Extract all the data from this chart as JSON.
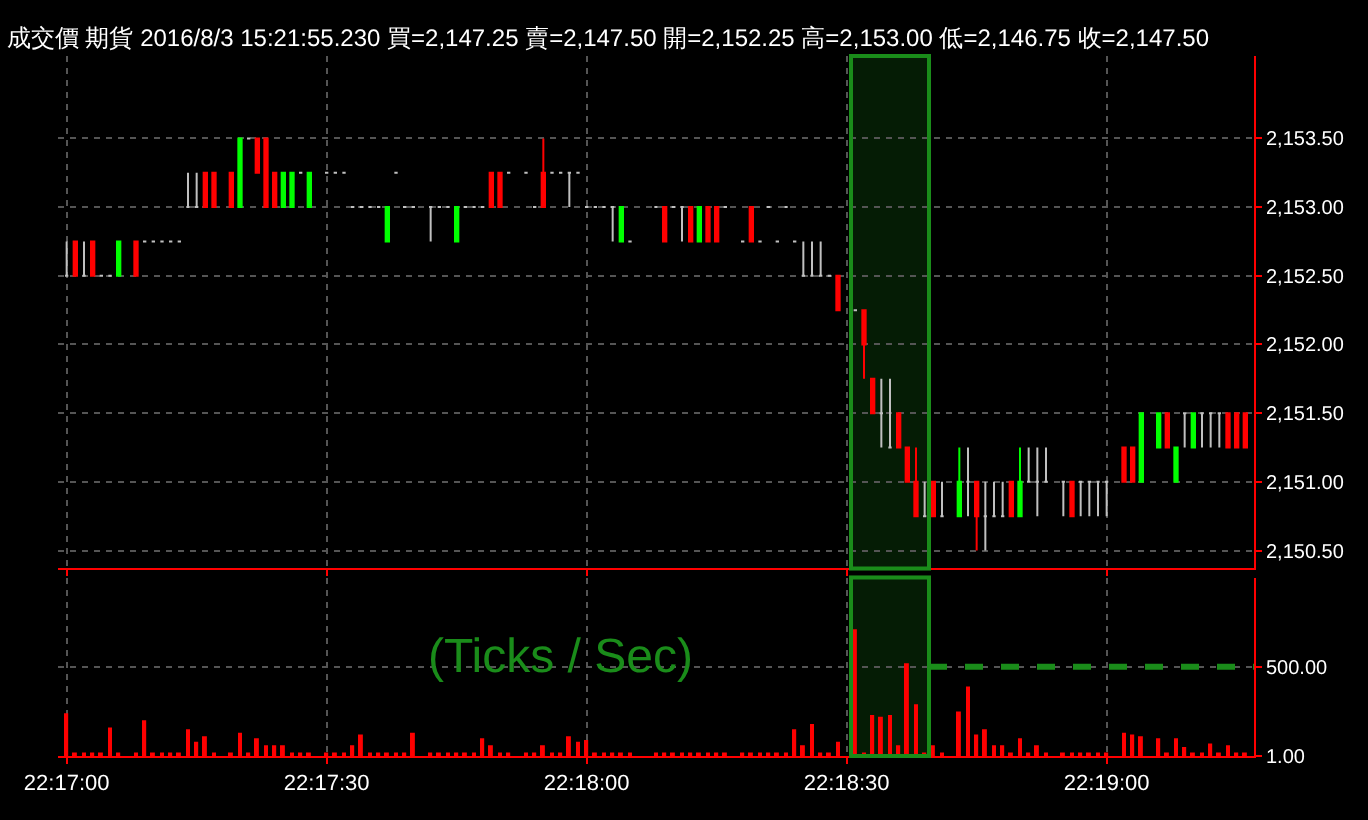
{
  "chart_data": [
    {
      "type": "candlestick",
      "title": "成交價 期貨 2016/8/3 15:21:55.230 買=2,147.25 賣=2,147.50 開=2,152.25 高=2,153.00 低=2,146.75 收=2,147.50",
      "x": [
        "2016-08-03T22:17:00",
        "2016-08-03T22:17:01",
        "2016-08-03T22:17:02",
        "2016-08-03T22:17:03",
        "2016-08-03T22:17:04",
        "2016-08-03T22:17:05",
        "2016-08-03T22:17:06",
        "2016-08-03T22:17:08",
        "2016-08-03T22:17:09",
        "2016-08-03T22:17:10",
        "2016-08-03T22:17:11",
        "2016-08-03T22:17:12",
        "2016-08-03T22:17:13",
        "2016-08-03T22:17:14",
        "2016-08-03T22:17:15",
        "2016-08-03T22:17:16",
        "2016-08-03T22:17:17",
        "2016-08-03T22:17:19",
        "2016-08-03T22:17:20",
        "2016-08-03T22:17:21",
        "2016-08-03T22:17:22",
        "2016-08-03T22:17:23",
        "2016-08-03T22:17:24",
        "2016-08-03T22:17:25",
        "2016-08-03T22:17:26",
        "2016-08-03T22:17:27",
        "2016-08-03T22:17:28",
        "2016-08-03T22:17:30",
        "2016-08-03T22:17:31",
        "2016-08-03T22:17:32",
        "2016-08-03T22:17:33",
        "2016-08-03T22:17:34",
        "2016-08-03T22:17:35",
        "2016-08-03T22:17:36",
        "2016-08-03T22:17:37",
        "2016-08-03T22:17:38",
        "2016-08-03T22:17:39",
        "2016-08-03T22:17:40",
        "2016-08-03T22:17:42",
        "2016-08-03T22:17:43",
        "2016-08-03T22:17:44",
        "2016-08-03T22:17:45",
        "2016-08-03T22:17:46",
        "2016-08-03T22:17:47",
        "2016-08-03T22:17:48",
        "2016-08-03T22:17:49",
        "2016-08-03T22:17:50",
        "2016-08-03T22:17:51",
        "2016-08-03T22:17:53",
        "2016-08-03T22:17:54",
        "2016-08-03T22:17:55",
        "2016-08-03T22:17:56",
        "2016-08-03T22:17:57",
        "2016-08-03T22:17:58",
        "2016-08-03T22:17:59",
        "2016-08-03T22:18:00",
        "2016-08-03T22:18:01",
        "2016-08-03T22:18:02",
        "2016-08-03T22:18:03",
        "2016-08-03T22:18:04",
        "2016-08-03T22:18:05",
        "2016-08-03T22:18:08",
        "2016-08-03T22:18:09",
        "2016-08-03T22:18:10",
        "2016-08-03T22:18:11",
        "2016-08-03T22:18:12",
        "2016-08-03T22:18:13",
        "2016-08-03T22:18:14",
        "2016-08-03T22:18:15",
        "2016-08-03T22:18:16",
        "2016-08-03T22:18:18",
        "2016-08-03T22:18:19",
        "2016-08-03T22:18:20",
        "2016-08-03T22:18:21",
        "2016-08-03T22:18:22",
        "2016-08-03T22:18:23",
        "2016-08-03T22:18:24",
        "2016-08-03T22:18:25",
        "2016-08-03T22:18:26",
        "2016-08-03T22:18:27",
        "2016-08-03T22:18:28",
        "2016-08-03T22:18:29",
        "2016-08-03T22:18:31",
        "2016-08-03T22:18:32",
        "2016-08-03T22:18:33",
        "2016-08-03T22:18:34",
        "2016-08-03T22:18:35",
        "2016-08-03T22:18:36",
        "2016-08-03T22:18:37",
        "2016-08-03T22:18:38",
        "2016-08-03T22:18:39",
        "2016-08-03T22:18:40",
        "2016-08-03T22:18:41",
        "2016-08-03T22:18:43",
        "2016-08-03T22:18:44",
        "2016-08-03T22:18:45",
        "2016-08-03T22:18:46",
        "2016-08-03T22:18:47",
        "2016-08-03T22:18:48",
        "2016-08-03T22:18:49",
        "2016-08-03T22:18:50",
        "2016-08-03T22:18:51",
        "2016-08-03T22:18:52",
        "2016-08-03T22:18:53",
        "2016-08-03T22:18:55",
        "2016-08-03T22:18:56",
        "2016-08-03T22:18:57",
        "2016-08-03T22:18:58",
        "2016-08-03T22:18:59",
        "2016-08-03T22:19:00",
        "2016-08-03T22:19:02",
        "2016-08-03T22:19:03",
        "2016-08-03T22:19:04",
        "2016-08-03T22:19:06",
        "2016-08-03T22:19:07",
        "2016-08-03T22:19:08",
        "2016-08-03T22:19:09",
        "2016-08-03T22:19:10",
        "2016-08-03T22:19:11",
        "2016-08-03T22:19:12",
        "2016-08-03T22:19:13",
        "2016-08-03T22:19:14",
        "2016-08-03T22:19:15",
        "2016-08-03T22:19:16"
      ],
      "ohlc": [
        [
          2152.5,
          2152.75,
          2152.5,
          2152.5
        ],
        [
          2152.75,
          2152.75,
          2152.5,
          2152.5
        ],
        [
          2152.5,
          2152.75,
          2152.5,
          2152.5
        ],
        [
          2152.75,
          2152.75,
          2152.5,
          2152.5
        ],
        [
          2152.5,
          2152.5,
          2152.5,
          2152.5
        ],
        [
          2152.5,
          2152.5,
          2152.5,
          2152.5
        ],
        [
          2152.5,
          2152.75,
          2152.5,
          2152.75
        ],
        [
          2152.75,
          2152.75,
          2152.5,
          2152.5
        ],
        [
          2152.75,
          2152.75,
          2152.75,
          2152.75
        ],
        [
          2152.75,
          2152.75,
          2152.75,
          2152.75
        ],
        [
          2152.75,
          2152.75,
          2152.75,
          2152.75
        ],
        [
          2152.75,
          2152.75,
          2152.75,
          2152.75
        ],
        [
          2152.75,
          2152.75,
          2152.75,
          2152.75
        ],
        [
          2153,
          2153.25,
          2153,
          2153
        ],
        [
          2153,
          2153.25,
          2153,
          2153
        ],
        [
          2153.25,
          2153.25,
          2153,
          2153
        ],
        [
          2153.25,
          2153.25,
          2153,
          2153
        ],
        [
          2153.25,
          2153.25,
          2153,
          2153
        ],
        [
          2153,
          2153.5,
          2153,
          2153.5
        ],
        [
          2153.5,
          2153.5,
          2153.5,
          2153.5
        ],
        [
          2153.5,
          2153.5,
          2153.25,
          2153.25
        ],
        [
          2153.5,
          2153.5,
          2153,
          2153
        ],
        [
          2153.25,
          2153.25,
          2153,
          2153
        ],
        [
          2153,
          2153.25,
          2153,
          2153.25
        ],
        [
          2153,
          2153.25,
          2153,
          2153.25
        ],
        [
          2153.25,
          2153.25,
          2153.25,
          2153.25
        ],
        [
          2153,
          2153.25,
          2153,
          2153.25
        ],
        [
          2153.25,
          2153.25,
          2153.25,
          2153.25
        ],
        [
          2153.25,
          2153.25,
          2153.25,
          2153.25
        ],
        [
          2153.25,
          2153.25,
          2153.25,
          2153.25
        ],
        [
          2153,
          2153,
          2153,
          2153
        ],
        [
          2153,
          2153,
          2153,
          2153
        ],
        [
          2153,
          2153,
          2153,
          2153
        ],
        [
          2153,
          2153,
          2153,
          2153
        ],
        [
          2152.75,
          2153,
          2152.75,
          2153
        ],
        [
          2153.25,
          2153.25,
          2153.25,
          2153.25
        ],
        [
          2153,
          2153,
          2153,
          2153
        ],
        [
          2153,
          2153,
          2153,
          2153
        ],
        [
          2153,
          2153,
          2152.75,
          2153
        ],
        [
          2153,
          2153,
          2153,
          2153
        ],
        [
          2153,
          2153,
          2153,
          2153
        ],
        [
          2152.75,
          2153,
          2152.75,
          2153
        ],
        [
          2153,
          2153,
          2153,
          2153
        ],
        [
          2153,
          2153,
          2153,
          2153
        ],
        [
          2153,
          2153,
          2153,
          2153
        ],
        [
          2153.25,
          2153.25,
          2153,
          2153
        ],
        [
          2153.25,
          2153.25,
          2153,
          2153
        ],
        [
          2153.25,
          2153.25,
          2153.25,
          2153.25
        ],
        [
          2153.25,
          2153.25,
          2153.25,
          2153.25
        ],
        [
          2153,
          2153,
          2153,
          2153
        ],
        [
          2153.25,
          2153.5,
          2153,
          2153
        ],
        [
          2153.25,
          2153.25,
          2153.25,
          2153.25
        ],
        [
          2153.25,
          2153.25,
          2153.25,
          2153.25
        ],
        [
          2153.25,
          2153.25,
          2153,
          2153.25
        ],
        [
          2153.25,
          2153.25,
          2153.25,
          2153.25
        ],
        [
          2153,
          2153,
          2153,
          2153
        ],
        [
          2153,
          2153,
          2153,
          2153
        ],
        [
          2153,
          2153,
          2153,
          2153
        ],
        [
          2153,
          2153,
          2152.75,
          2153
        ],
        [
          2152.75,
          2153,
          2152.75,
          2153
        ],
        [
          2152.75,
          2152.75,
          2152.75,
          2152.75
        ],
        [
          2153,
          2153,
          2153,
          2153
        ],
        [
          2153,
          2153,
          2152.75,
          2152.75
        ],
        [
          2153,
          2153,
          2153,
          2153
        ],
        [
          2153,
          2153,
          2152.75,
          2153
        ],
        [
          2153,
          2153,
          2152.75,
          2152.75
        ],
        [
          2152.75,
          2153,
          2152.75,
          2153
        ],
        [
          2153,
          2153,
          2152.75,
          2152.75
        ],
        [
          2153,
          2153,
          2152.75,
          2152.75
        ],
        [
          2153,
          2153,
          2153,
          2153
        ],
        [
          2152.75,
          2152.75,
          2152.75,
          2152.75
        ],
        [
          2153,
          2153,
          2152.75,
          2152.75
        ],
        [
          2152.75,
          2152.75,
          2152.75,
          2152.75
        ],
        [
          2153,
          2153,
          2153,
          2153
        ],
        [
          2152.75,
          2152.75,
          2152.75,
          2152.75
        ],
        [
          2153,
          2153,
          2153,
          2153
        ],
        [
          2152.75,
          2152.75,
          2152.75,
          2152.75
        ],
        [
          2152.5,
          2152.75,
          2152.5,
          2152.5
        ],
        [
          2152.5,
          2152.75,
          2152.5,
          2152.5
        ],
        [
          2152.5,
          2152.75,
          2152.5,
          2152.5
        ],
        [
          2152.5,
          2152.5,
          2152.5,
          2152.5
        ],
        [
          2152.5,
          2152.5,
          2152.25,
          2152.25
        ],
        [
          2152.25,
          2152.25,
          2152.25,
          2152.25
        ],
        [
          2152.25,
          2152.25,
          2151.75,
          2152
        ],
        [
          2151.75,
          2151.75,
          2151.5,
          2151.5
        ],
        [
          2151.5,
          2151.75,
          2151.25,
          2151.5
        ],
        [
          2151.25,
          2151.75,
          2151.25,
          2151.25
        ],
        [
          2151.5,
          2151.5,
          2151.25,
          2151.25
        ],
        [
          2151.25,
          2151.25,
          2151,
          2151
        ],
        [
          2151,
          2151.25,
          2150.75,
          2150.75
        ],
        [
          2150.75,
          2151,
          2150.75,
          2150.75
        ],
        [
          2151,
          2151,
          2150.75,
          2150.75
        ],
        [
          2150.75,
          2151,
          2150.75,
          2150.75
        ],
        [
          2150.75,
          2151.25,
          2150.75,
          2151
        ],
        [
          2151,
          2151.25,
          2150.75,
          2151
        ],
        [
          2151,
          2151,
          2150.5,
          2150.75
        ],
        [
          2150.75,
          2151,
          2150.5,
          2150.75
        ],
        [
          2150.75,
          2151,
          2150.75,
          2150.75
        ],
        [
          2150.75,
          2151,
          2150.75,
          2150.75
        ],
        [
          2151,
          2151,
          2150.75,
          2150.75
        ],
        [
          2150.75,
          2151.25,
          2150.75,
          2151
        ],
        [
          2151,
          2151.25,
          2151,
          2151
        ],
        [
          2151,
          2151.25,
          2150.75,
          2151
        ],
        [
          2151,
          2151.25,
          2151,
          2151
        ],
        [
          2151,
          2151,
          2150.75,
          2151
        ],
        [
          2151,
          2151,
          2150.75,
          2150.75
        ],
        [
          2151,
          2151,
          2150.75,
          2151
        ],
        [
          2151,
          2151,
          2150.75,
          2151
        ],
        [
          2151,
          2151,
          2150.75,
          2151
        ],
        [
          2151,
          2151,
          2150.75,
          2151
        ],
        [
          2151.25,
          2151.25,
          2151,
          2151
        ],
        [
          2151.25,
          2151.25,
          2151,
          2151
        ],
        [
          2151,
          2151.5,
          2151,
          2151.5
        ],
        [
          2151.25,
          2151.5,
          2151.25,
          2151.5
        ],
        [
          2151.5,
          2151.5,
          2151.25,
          2151.25
        ],
        [
          2151,
          2151.25,
          2151,
          2151.25
        ],
        [
          2151.5,
          2151.5,
          2151.25,
          2151.5
        ],
        [
          2151.25,
          2151.5,
          2151.25,
          2151.5
        ],
        [
          2151.5,
          2151.5,
          2151.25,
          2151.5
        ],
        [
          2151.5,
          2151.5,
          2151.25,
          2151.5
        ],
        [
          2151.5,
          2151.5,
          2151.25,
          2151.5
        ],
        [
          2151.5,
          2151.5,
          2151.25,
          2151.25
        ],
        [
          2151.5,
          2151.5,
          2151.25,
          2151.25
        ],
        [
          2151.5,
          2151.5,
          2151.25,
          2151.25
        ]
      ],
      "colors": [
        "#c0c0c0",
        "#ff0000",
        "#c0c0c0",
        "#ff0000",
        "#c0c0c0",
        "#c0c0c0",
        "#00ff00",
        "#ff0000",
        "#c0c0c0",
        "#c0c0c0",
        "#c0c0c0",
        "#c0c0c0",
        "#c0c0c0",
        "#c0c0c0",
        "#c0c0c0",
        "#ff0000",
        "#ff0000",
        "#ff0000",
        "#00ff00",
        "#c0c0c0",
        "#ff0000",
        "#ff0000",
        "#ff0000",
        "#00ff00",
        "#00ff00",
        "#c0c0c0",
        "#00ff00",
        "#c0c0c0",
        "#c0c0c0",
        "#c0c0c0",
        "#c0c0c0",
        "#c0c0c0",
        "#c0c0c0",
        "#c0c0c0",
        "#00ff00",
        "#c0c0c0",
        "#c0c0c0",
        "#c0c0c0",
        "#c0c0c0",
        "#c0c0c0",
        "#c0c0c0",
        "#00ff00",
        "#c0c0c0",
        "#c0c0c0",
        "#c0c0c0",
        "#ff0000",
        "#ff0000",
        "#c0c0c0",
        "#c0c0c0",
        "#c0c0c0",
        "#ff0000",
        "#c0c0c0",
        "#c0c0c0",
        "#c0c0c0",
        "#c0c0c0",
        "#c0c0c0",
        "#c0c0c0",
        "#c0c0c0",
        "#c0c0c0",
        "#00ff00",
        "#c0c0c0",
        "#c0c0c0",
        "#ff0000",
        "#c0c0c0",
        "#c0c0c0",
        "#ff0000",
        "#00ff00",
        "#ff0000",
        "#ff0000",
        "#c0c0c0",
        "#c0c0c0",
        "#ff0000",
        "#c0c0c0",
        "#c0c0c0",
        "#c0c0c0",
        "#c0c0c0",
        "#c0c0c0",
        "#c0c0c0",
        "#c0c0c0",
        "#c0c0c0",
        "#c0c0c0",
        "#ff0000",
        "#c0c0c0",
        "#ff0000",
        "#ff0000",
        "#c0c0c0",
        "#c0c0c0",
        "#ff0000",
        "#ff0000",
        "#ff0000",
        "#c0c0c0",
        "#ff0000",
        "#c0c0c0",
        "#00ff00",
        "#c0c0c0",
        "#ff0000",
        "#c0c0c0",
        "#c0c0c0",
        "#c0c0c0",
        "#ff0000",
        "#00ff00",
        "#c0c0c0",
        "#c0c0c0",
        "#c0c0c0",
        "#c0c0c0",
        "#ff0000",
        "#c0c0c0",
        "#c0c0c0",
        "#c0c0c0",
        "#c0c0c0",
        "#ff0000",
        "#ff0000",
        "#00ff00",
        "#00ff00",
        "#ff0000",
        "#00ff00",
        "#c0c0c0",
        "#00ff00",
        "#c0c0c0",
        "#c0c0c0",
        "#c0c0c0",
        "#ff0000",
        "#ff0000",
        "#ff0000"
      ],
      "ylim": [
        2150.37,
        2154.1
      ],
      "yticks": [
        {
          "value": 2150.5,
          "label": "2,150.50"
        },
        {
          "value": 2151,
          "label": "2,151.00"
        },
        {
          "value": 2151.5,
          "label": "2,151.50"
        },
        {
          "value": 2152,
          "label": "2,152.00"
        },
        {
          "value": 2152.5,
          "label": "2,152.50"
        },
        {
          "value": 2153,
          "label": "2,153.00"
        },
        {
          "value": 2153.5,
          "label": "2,153.50"
        }
      ],
      "xlim": [
        "2016-08-03T22:16:59",
        "2016-08-03T22:19:17"
      ],
      "xticks": [
        {
          "value": "2016-08-03T22:17:00",
          "label": null
        },
        {
          "value": "2016-08-03T22:17:30",
          "label": null
        },
        {
          "value": "2016-08-03T22:18:00",
          "label": null
        },
        {
          "value": "2016-08-03T22:18:30",
          "label": null
        },
        {
          "value": "2016-08-03T22:19:00",
          "label": null
        }
      ],
      "tick_labels": "y",
      "grid": true,
      "bands": [
        {
          "axis": "x",
          "from": "2016-08-03T22:18:30.5",
          "to": "2016-08-03T22:18:39.5",
          "color": "#1a8c1a"
        }
      ]
    },
    {
      "type": "bar",
      "x": [
        "2016-08-03T22:17:00",
        "2016-08-03T22:17:01",
        "2016-08-03T22:17:02",
        "2016-08-03T22:17:03",
        "2016-08-03T22:17:04",
        "2016-08-03T22:17:05",
        "2016-08-03T22:17:06",
        "2016-08-03T22:17:08",
        "2016-08-03T22:17:09",
        "2016-08-03T22:17:10",
        "2016-08-03T22:17:11",
        "2016-08-03T22:17:12",
        "2016-08-03T22:17:13",
        "2016-08-03T22:17:14",
        "2016-08-03T22:17:15",
        "2016-08-03T22:17:16",
        "2016-08-03T22:17:17",
        "2016-08-03T22:17:19",
        "2016-08-03T22:17:20",
        "2016-08-03T22:17:21",
        "2016-08-03T22:17:22",
        "2016-08-03T22:17:23",
        "2016-08-03T22:17:24",
        "2016-08-03T22:17:25",
        "2016-08-03T22:17:26",
        "2016-08-03T22:17:27",
        "2016-08-03T22:17:28",
        "2016-08-03T22:17:30",
        "2016-08-03T22:17:31",
        "2016-08-03T22:17:32",
        "2016-08-03T22:17:33",
        "2016-08-03T22:17:34",
        "2016-08-03T22:17:35",
        "2016-08-03T22:17:36",
        "2016-08-03T22:17:37",
        "2016-08-03T22:17:38",
        "2016-08-03T22:17:39",
        "2016-08-03T22:17:40",
        "2016-08-03T22:17:42",
        "2016-08-03T22:17:43",
        "2016-08-03T22:17:44",
        "2016-08-03T22:17:45",
        "2016-08-03T22:17:46",
        "2016-08-03T22:17:47",
        "2016-08-03T22:17:48",
        "2016-08-03T22:17:49",
        "2016-08-03T22:17:50",
        "2016-08-03T22:17:51",
        "2016-08-03T22:17:53",
        "2016-08-03T22:17:54",
        "2016-08-03T22:17:55",
        "2016-08-03T22:17:56",
        "2016-08-03T22:17:57",
        "2016-08-03T22:17:58",
        "2016-08-03T22:17:59",
        "2016-08-03T22:18:00",
        "2016-08-03T22:18:01",
        "2016-08-03T22:18:02",
        "2016-08-03T22:18:03",
        "2016-08-03T22:18:04",
        "2016-08-03T22:18:05",
        "2016-08-03T22:18:08",
        "2016-08-03T22:18:09",
        "2016-08-03T22:18:10",
        "2016-08-03T22:18:11",
        "2016-08-03T22:18:12",
        "2016-08-03T22:18:13",
        "2016-08-03T22:18:14",
        "2016-08-03T22:18:15",
        "2016-08-03T22:18:16",
        "2016-08-03T22:18:18",
        "2016-08-03T22:18:19",
        "2016-08-03T22:18:20",
        "2016-08-03T22:18:21",
        "2016-08-03T22:18:22",
        "2016-08-03T22:18:23",
        "2016-08-03T22:18:24",
        "2016-08-03T22:18:25",
        "2016-08-03T22:18:26",
        "2016-08-03T22:18:27",
        "2016-08-03T22:18:28",
        "2016-08-03T22:18:29",
        "2016-08-03T22:18:31",
        "2016-08-03T22:18:32",
        "2016-08-03T22:18:33",
        "2016-08-03T22:18:34",
        "2016-08-03T22:18:35",
        "2016-08-03T22:18:36",
        "2016-08-03T22:18:37",
        "2016-08-03T22:18:38",
        "2016-08-03T22:18:39",
        "2016-08-03T22:18:40",
        "2016-08-03T22:18:41",
        "2016-08-03T22:18:43",
        "2016-08-03T22:18:44",
        "2016-08-03T22:18:45",
        "2016-08-03T22:18:46",
        "2016-08-03T22:18:47",
        "2016-08-03T22:18:48",
        "2016-08-03T22:18:49",
        "2016-08-03T22:18:50",
        "2016-08-03T22:18:51",
        "2016-08-03T22:18:52",
        "2016-08-03T22:18:53",
        "2016-08-03T22:18:55",
        "2016-08-03T22:18:56",
        "2016-08-03T22:18:57",
        "2016-08-03T22:18:58",
        "2016-08-03T22:18:59",
        "2016-08-03T22:19:00",
        "2016-08-03T22:19:02",
        "2016-08-03T22:19:03",
        "2016-08-03T22:19:04",
        "2016-08-03T22:19:06",
        "2016-08-03T22:19:07",
        "2016-08-03T22:19:08",
        "2016-08-03T22:19:09",
        "2016-08-03T22:19:10",
        "2016-08-03T22:19:11",
        "2016-08-03T22:19:12",
        "2016-08-03T22:19:13",
        "2016-08-03T22:19:14",
        "2016-08-03T22:19:15",
        "2016-08-03T22:19:16"
      ],
      "values": [
        240,
        20,
        20,
        20,
        20,
        160,
        20,
        20,
        200,
        20,
        20,
        20,
        20,
        150,
        80,
        110,
        20,
        20,
        130,
        20,
        100,
        60,
        60,
        60,
        20,
        20,
        20,
        20,
        20,
        20,
        60,
        120,
        20,
        20,
        20,
        20,
        20,
        130,
        20,
        20,
        20,
        20,
        20,
        20,
        100,
        60,
        20,
        20,
        20,
        20,
        60,
        20,
        20,
        110,
        80,
        90,
        20,
        20,
        20,
        20,
        20,
        20,
        20,
        20,
        20,
        20,
        20,
        20,
        20,
        20,
        20,
        20,
        20,
        20,
        20,
        20,
        150,
        60,
        180,
        20,
        20,
        80,
        710,
        20,
        230,
        220,
        230,
        60,
        520,
        290,
        20,
        60,
        20,
        250,
        390,
        120,
        150,
        60,
        60,
        20,
        100,
        20,
        60,
        20,
        20,
        20,
        20,
        20,
        20,
        20,
        130,
        120,
        110,
        100,
        20,
        100,
        50,
        20,
        20,
        70,
        20,
        60,
        20,
        20
      ],
      "color": "#ff0000",
      "ylim": [
        0,
        1000
      ],
      "yticks": [
        {
          "value": 1,
          "label": "1.00"
        },
        {
          "value": 500,
          "label": "500.00"
        }
      ],
      "xlim": [
        "2016-08-03T22:16:59",
        "2016-08-03T22:19:17"
      ],
      "xticks": [
        {
          "value": "2016-08-03T22:17:00",
          "label": "22:17:00"
        },
        {
          "value": "2016-08-03T22:17:30",
          "label": "22:17:30"
        },
        {
          "value": "2016-08-03T22:18:00",
          "label": "22:18:00"
        },
        {
          "value": "2016-08-03T22:18:30",
          "label": "22:18:30"
        },
        {
          "value": "2016-08-03T22:19:00",
          "label": "22:19:00"
        }
      ],
      "grid": true,
      "annotations": [
        "(Ticks / Sec)"
      ],
      "ref_lines": [
        {
          "axis": "y",
          "value": 500,
          "color": "#1a8c1a",
          "line_style": "dashed"
        }
      ],
      "bands": [
        {
          "axis": "x",
          "from": "2016-08-03T22:18:30.5",
          "to": "2016-08-03T22:18:39.5",
          "color": "#1a8c1a"
        }
      ]
    }
  ]
}
